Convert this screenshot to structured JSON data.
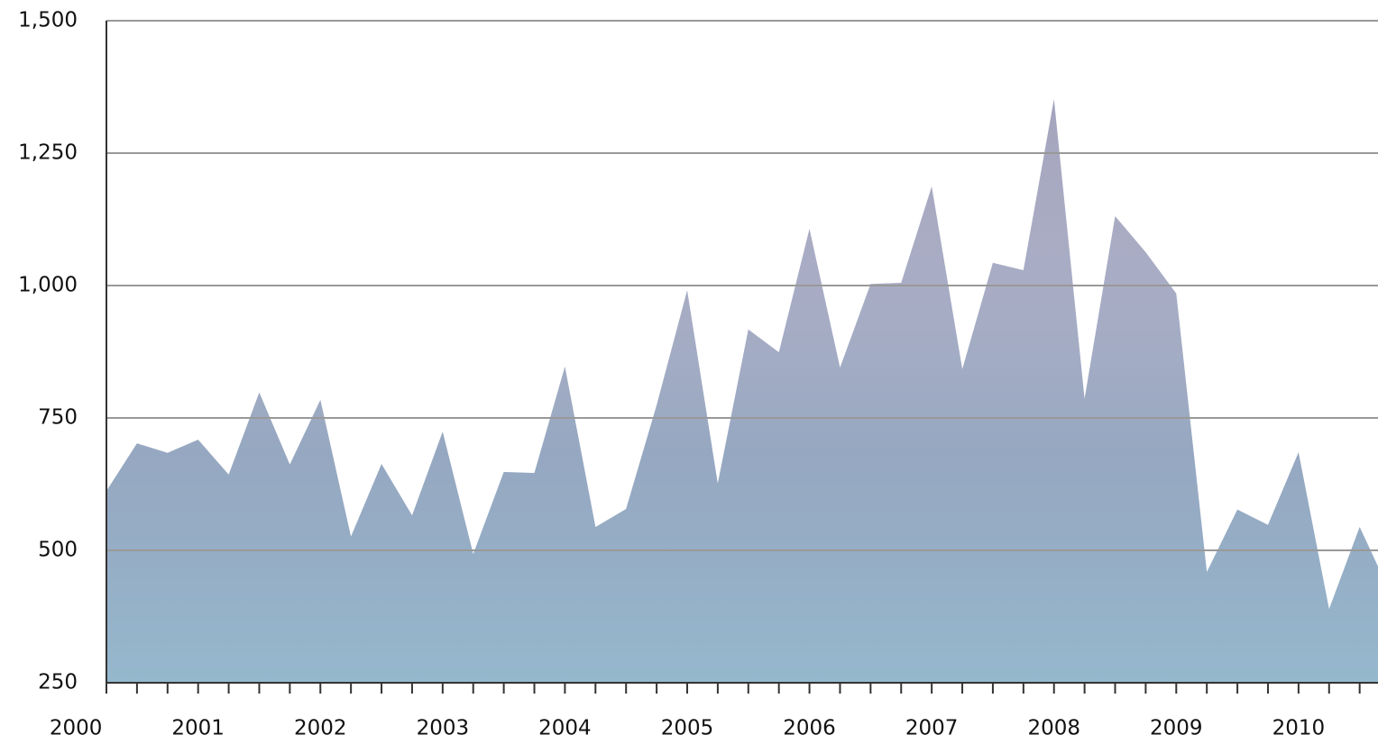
{
  "chart_data": {
    "type": "area",
    "x": [
      2000.25,
      2000.5,
      2000.75,
      2001,
      2001.25,
      2001.5,
      2001.75,
      2002,
      2002.25,
      2002.5,
      2002.75,
      2003,
      2003.25,
      2003.5,
      2003.75,
      2004,
      2004.25,
      2004.5,
      2004.75,
      2005,
      2005.25,
      2005.5,
      2005.75,
      2006,
      2006.25,
      2006.5,
      2006.75,
      2007,
      2007.25,
      2007.5,
      2007.75,
      2008,
      2008.25,
      2008.5,
      2008.75,
      2009,
      2009.25,
      2009.5,
      2009.75,
      2010,
      2010.25,
      2010.5,
      2010.75
    ],
    "values": [
      612,
      702,
      684,
      709,
      643,
      798,
      662,
      784,
      526,
      663,
      566,
      724,
      493,
      648,
      646,
      847,
      544,
      578,
      774,
      991,
      626,
      917,
      874,
      1107,
      845,
      1003,
      1005,
      1187,
      842,
      1043,
      1029,
      1352,
      786,
      1131,
      1063,
      985,
      459,
      577,
      548,
      685,
      389,
      544,
      420
    ],
    "color": "#a3a3bd",
    "xlim": [
      2000.25,
      2010.65
    ],
    "xticks": [
      2000,
      2001,
      2002,
      2003,
      2004,
      2005,
      2006,
      2007,
      2008,
      2009,
      2010
    ],
    "ylim": [
      250,
      1500
    ],
    "yticks": [
      250,
      500,
      750,
      {
        "value": 1000,
        "label": "1,000"
      },
      {
        "value": 1250,
        "label": "1,250"
      },
      {
        "value": 1500,
        "label": "1,500"
      }
    ],
    "grid": true
  }
}
